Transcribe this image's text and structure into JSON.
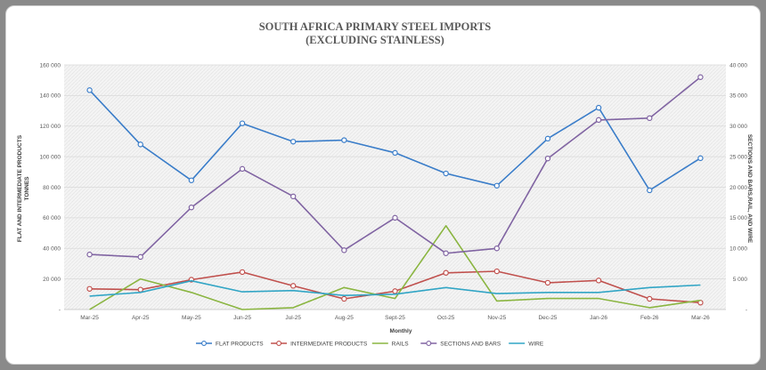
{
  "chart_data": {
    "type": "line",
    "title": [
      "SOUTH AFRICA PRIMARY STEEL IMPORTS",
      "(EXCLUDING STAINLESS)"
    ],
    "xlabel": "Monthly",
    "ylabel_left": [
      "FLAT AND INTERMEDIATE PRODUCTS",
      "TONNES"
    ],
    "ylabel_right": "SECTIONS AND BARS,RAIL, AND WIRE",
    "categories": [
      "Mar-25",
      "Apr-25",
      "May-25",
      "Jun-25",
      "Jul-25",
      "Aug-25",
      "Sept-25",
      "Oct-25",
      "Nov-25",
      "Dec-25",
      "Jan-26",
      "Feb-26",
      "Mar-26"
    ],
    "y_left": {
      "min": 0,
      "max": 160000,
      "ticks": [
        "-",
        "20 000",
        "40 000",
        "60 000",
        "80 000",
        "100 000",
        "120 000",
        "140 000",
        "160 000"
      ]
    },
    "y_right": {
      "min": 0,
      "max": 40000,
      "ticks": [
        "-",
        "5 000",
        "10 000",
        "15 000",
        "20 000",
        "25 000",
        "30 000",
        "35 000",
        "40 000"
      ]
    },
    "grid": true,
    "legend_position": "bottom",
    "series": [
      {
        "name": "FLAT PRODUCTS",
        "axis": "left",
        "color": "#3a7dc9",
        "marker": true,
        "values": [
          143500,
          108000,
          84500,
          121800,
          109800,
          110800,
          102500,
          89000,
          81000,
          111800,
          132000,
          78000,
          99000
        ]
      },
      {
        "name": "INTERMEDIATE PRODUCTS",
        "axis": "left",
        "color": "#c0504d",
        "marker": true,
        "values": [
          13500,
          13000,
          19500,
          24500,
          15500,
          7000,
          12000,
          24000,
          25000,
          17500,
          19000,
          7000,
          4500
        ]
      },
      {
        "name": "RAILS",
        "axis": "right",
        "color": "#8ab540",
        "marker": false,
        "values": [
          0,
          5000,
          2800,
          0,
          300,
          3600,
          1800,
          13700,
          1400,
          1800,
          1800,
          300,
          1500
        ]
      },
      {
        "name": "SECTIONS AND BARS",
        "axis": "right",
        "color": "#8064a2",
        "marker": true,
        "values": [
          9000,
          8600,
          16700,
          23000,
          18500,
          9700,
          15000,
          9200,
          10000,
          24700,
          31000,
          31300,
          38000
        ]
      },
      {
        "name": "WIRE",
        "axis": "right",
        "color": "#31a5c5",
        "marker": false,
        "values": [
          2200,
          2800,
          4700,
          2900,
          3100,
          2300,
          2500,
          3600,
          2600,
          2800,
          2800,
          3600,
          4000
        ]
      }
    ]
  }
}
